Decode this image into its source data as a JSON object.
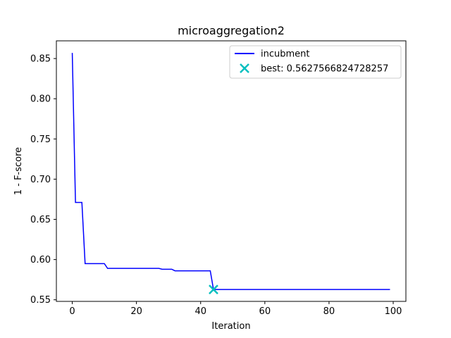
{
  "chart_data": {
    "type": "line",
    "title": "microaggregation2",
    "xlabel": "Iteration",
    "ylabel": "1 - F-score",
    "xlim": [
      -4.95,
      103.95
    ],
    "ylim": [
      0.548,
      0.872
    ],
    "xticks": [
      0,
      20,
      40,
      60,
      80,
      100
    ],
    "yticks": [
      0.55,
      0.6,
      0.65,
      0.7,
      0.75,
      0.8,
      0.85
    ],
    "xtick_labels": [
      "0",
      "20",
      "40",
      "60",
      "80",
      "100"
    ],
    "ytick_labels": [
      "0.55",
      "0.60",
      "0.65",
      "0.70",
      "0.75",
      "0.80",
      "0.85"
    ],
    "grid": false,
    "legend_position": "top-right",
    "series": [
      {
        "name": "incubment",
        "color": "#0000ff",
        "style": "step",
        "points": [
          [
            0,
            0.857
          ],
          [
            1,
            0.671
          ],
          [
            3,
            0.671
          ],
          [
            4,
            0.595
          ],
          [
            10,
            0.595
          ],
          [
            11,
            0.589
          ],
          [
            27,
            0.589
          ],
          [
            28,
            0.588
          ],
          [
            31,
            0.588
          ],
          [
            32,
            0.586
          ],
          [
            43,
            0.586
          ],
          [
            44,
            0.5628
          ],
          [
            99,
            0.5628
          ]
        ]
      }
    ],
    "best": {
      "label": "best: 0.5627566824728257",
      "x": 44,
      "y": 0.5627566824728257,
      "color": "#00bfbf",
      "marker": "x"
    }
  }
}
